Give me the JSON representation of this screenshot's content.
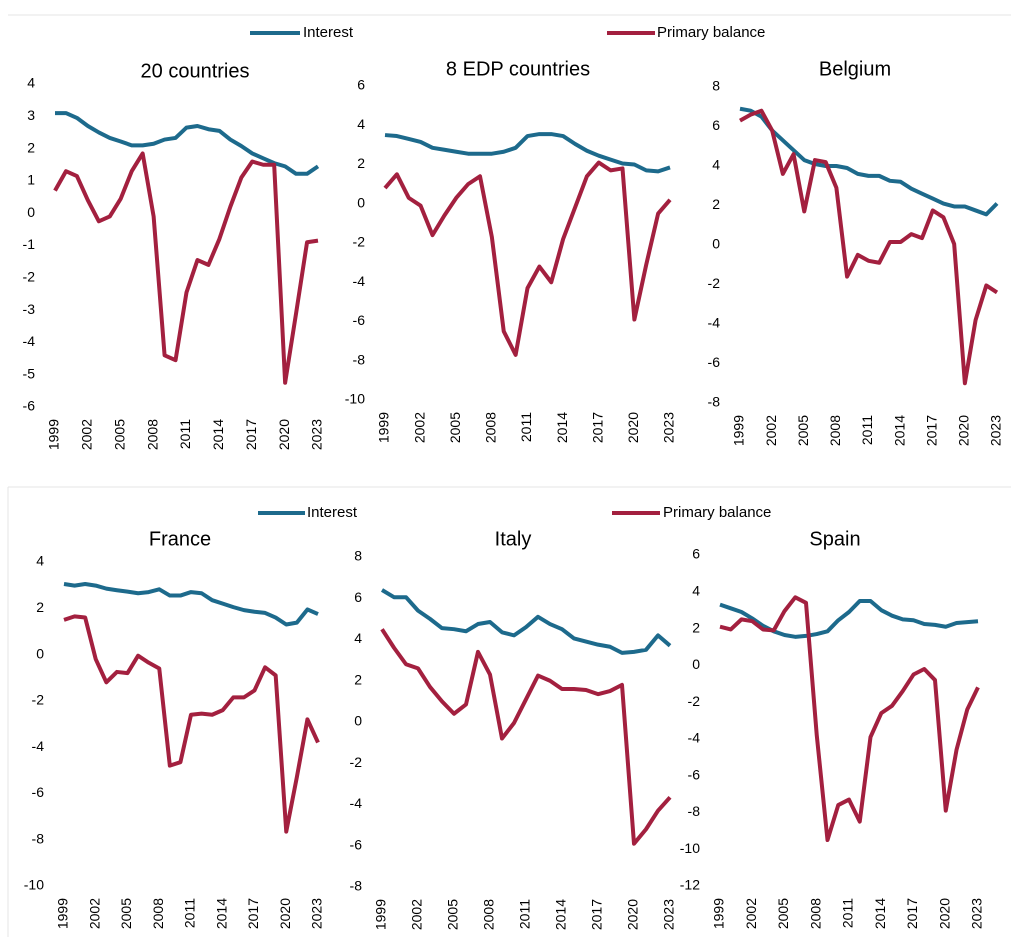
{
  "chart_data": [
    {
      "type": "line",
      "title": "20 countries",
      "x": [
        1999,
        2000,
        2001,
        2002,
        2003,
        2004,
        2005,
        2006,
        2007,
        2008,
        2009,
        2010,
        2011,
        2012,
        2013,
        2014,
        2015,
        2016,
        2017,
        2018,
        2019,
        2020,
        2021,
        2022,
        2023
      ],
      "xlim": [
        1999,
        2023
      ],
      "xticks": [
        1999,
        2002,
        2005,
        2008,
        2011,
        2014,
        2017,
        2020,
        2023
      ],
      "ylim": [
        -6,
        4
      ],
      "yticks": [
        -6,
        -5,
        -4,
        -3,
        -2,
        -1,
        0,
        1,
        2,
        3,
        4
      ],
      "series": [
        {
          "name": "Interest",
          "color": "#1d6a8c",
          "values": [
            3.1,
            3.1,
            2.95,
            2.7,
            2.5,
            2.33,
            2.22,
            2.1,
            2.1,
            2.15,
            2.28,
            2.33,
            2.65,
            2.7,
            2.6,
            2.55,
            2.28,
            2.08,
            1.85,
            1.7,
            1.55,
            1.45,
            1.22,
            1.22,
            1.45
          ]
        },
        {
          "name": "Primary balance",
          "color": "#a3203f",
          "values": [
            0.7,
            1.3,
            1.15,
            0.4,
            -0.25,
            -0.1,
            0.45,
            1.3,
            1.85,
            -0.1,
            -4.4,
            -4.55,
            -2.45,
            -1.45,
            -1.6,
            -0.8,
            0.2,
            1.1,
            1.6,
            1.5,
            1.5,
            -5.25,
            -3.1,
            -0.9,
            -0.85
          ]
        }
      ]
    },
    {
      "type": "line",
      "title": "8 EDP countries",
      "x": [
        1999,
        2000,
        2001,
        2002,
        2003,
        2004,
        2005,
        2006,
        2007,
        2008,
        2009,
        2010,
        2011,
        2012,
        2013,
        2014,
        2015,
        2016,
        2017,
        2018,
        2019,
        2020,
        2021,
        2022,
        2023
      ],
      "xlim": [
        1999,
        2023
      ],
      "xticks": [
        1999,
        2002,
        2005,
        2008,
        2011,
        2014,
        2017,
        2020,
        2023
      ],
      "ylim": [
        -10,
        6
      ],
      "yticks": [
        -10,
        -8,
        -6,
        -4,
        -2,
        0,
        2,
        4,
        6
      ],
      "series": [
        {
          "name": "Interest",
          "color": "#1d6a8c",
          "values": [
            3.5,
            3.45,
            3.3,
            3.15,
            2.85,
            2.75,
            2.65,
            2.55,
            2.55,
            2.55,
            2.65,
            2.85,
            3.45,
            3.55,
            3.55,
            3.45,
            3.05,
            2.7,
            2.45,
            2.25,
            2.05,
            2.0,
            1.7,
            1.65,
            1.85
          ]
        },
        {
          "name": "Primary balance",
          "color": "#a3203f",
          "values": [
            0.8,
            1.5,
            0.3,
            -0.1,
            -1.6,
            -0.6,
            0.3,
            1.0,
            1.4,
            -1.7,
            -6.5,
            -7.7,
            -4.3,
            -3.2,
            -4.0,
            -1.8,
            -0.2,
            1.4,
            2.1,
            1.7,
            1.8,
            -5.9,
            -3.1,
            -0.5,
            0.2
          ]
        }
      ]
    },
    {
      "type": "line",
      "title": "Belgium",
      "x": [
        1999,
        2000,
        2001,
        2002,
        2003,
        2004,
        2005,
        2006,
        2007,
        2008,
        2009,
        2010,
        2011,
        2012,
        2013,
        2014,
        2015,
        2016,
        2017,
        2018,
        2019,
        2020,
        2021,
        2022,
        2023
      ],
      "xlim": [
        1999,
        2023
      ],
      "xticks": [
        1999,
        2002,
        2005,
        2008,
        2011,
        2014,
        2017,
        2020,
        2023
      ],
      "ylim": [
        -8,
        8
      ],
      "yticks": [
        -8,
        -6,
        -4,
        -2,
        0,
        2,
        4,
        6,
        8
      ],
      "series": [
        {
          "name": "Interest",
          "color": "#1d6a8c",
          "values": [
            6.9,
            6.8,
            6.5,
            5.8,
            5.3,
            4.8,
            4.3,
            4.1,
            4.0,
            4.0,
            3.9,
            3.6,
            3.5,
            3.5,
            3.25,
            3.2,
            2.85,
            2.6,
            2.35,
            2.1,
            1.95,
            1.95,
            1.75,
            1.55,
            2.1
          ]
        },
        {
          "name": "Primary balance",
          "color": "#a3203f",
          "values": [
            6.3,
            6.6,
            6.8,
            5.8,
            3.6,
            4.6,
            1.7,
            4.3,
            4.2,
            2.9,
            -1.6,
            -0.5,
            -0.8,
            -0.9,
            0.15,
            0.15,
            0.55,
            0.35,
            1.75,
            1.4,
            0.05,
            -7.0,
            -3.8,
            -2.05,
            -2.4
          ]
        }
      ]
    },
    {
      "type": "line",
      "title": "France",
      "x": [
        1999,
        2000,
        2001,
        2002,
        2003,
        2004,
        2005,
        2006,
        2007,
        2008,
        2009,
        2010,
        2011,
        2012,
        2013,
        2014,
        2015,
        2016,
        2017,
        2018,
        2019,
        2020,
        2021,
        2022,
        2023
      ],
      "xlim": [
        1999,
        2023
      ],
      "xticks": [
        1999,
        2002,
        2005,
        2008,
        2011,
        2014,
        2017,
        2020,
        2023
      ],
      "ylim": [
        -10,
        4
      ],
      "yticks": [
        -10,
        -8,
        -6,
        -4,
        -2,
        0,
        2,
        4
      ],
      "series": [
        {
          "name": "Interest",
          "color": "#1d6a8c",
          "values": [
            3.05,
            2.98,
            3.05,
            2.98,
            2.85,
            2.78,
            2.72,
            2.65,
            2.7,
            2.82,
            2.55,
            2.55,
            2.7,
            2.65,
            2.35,
            2.2,
            2.05,
            1.92,
            1.85,
            1.8,
            1.6,
            1.3,
            1.38,
            1.95,
            1.75
          ]
        },
        {
          "name": "Primary balance",
          "color": "#a3203f",
          "values": [
            1.5,
            1.65,
            1.6,
            -0.2,
            -1.2,
            -0.75,
            -0.8,
            -0.05,
            -0.35,
            -0.6,
            -4.8,
            -4.65,
            -2.6,
            -2.55,
            -2.6,
            -2.4,
            -1.85,
            -1.85,
            -1.55,
            -0.55,
            -0.9,
            -7.65,
            -5.3,
            -2.8,
            -3.8
          ]
        }
      ]
    },
    {
      "type": "line",
      "title": "Italy",
      "x": [
        1999,
        2000,
        2001,
        2002,
        2003,
        2004,
        2005,
        2006,
        2007,
        2008,
        2009,
        2010,
        2011,
        2012,
        2013,
        2014,
        2015,
        2016,
        2017,
        2018,
        2019,
        2020,
        2021,
        2022,
        2023
      ],
      "xlim": [
        1999,
        2023
      ],
      "xticks": [
        1999,
        2002,
        2005,
        2008,
        2011,
        2014,
        2017,
        2020,
        2023
      ],
      "ylim": [
        -8,
        8
      ],
      "yticks": [
        -8,
        -6,
        -4,
        -2,
        0,
        2,
        4,
        6,
        8
      ],
      "series": [
        {
          "name": "Interest",
          "color": "#1d6a8c",
          "values": [
            6.4,
            6.05,
            6.05,
            5.4,
            5.0,
            4.55,
            4.5,
            4.4,
            4.75,
            4.85,
            4.35,
            4.2,
            4.6,
            5.1,
            4.75,
            4.5,
            4.05,
            3.9,
            3.75,
            3.65,
            3.35,
            3.4,
            3.5,
            4.2,
            3.7
          ]
        },
        {
          "name": "Primary balance",
          "color": "#a3203f",
          "values": [
            4.5,
            3.6,
            2.8,
            2.6,
            1.7,
            1.0,
            0.4,
            0.85,
            3.4,
            2.3,
            -0.8,
            -0.05,
            1.1,
            2.25,
            2.0,
            1.6,
            1.6,
            1.55,
            1.35,
            1.5,
            1.8,
            -5.9,
            -5.2,
            -4.3,
            -3.65
          ]
        }
      ]
    },
    {
      "type": "line",
      "title": "Spain",
      "x": [
        1999,
        2000,
        2001,
        2002,
        2003,
        2004,
        2005,
        2006,
        2007,
        2008,
        2009,
        2010,
        2011,
        2012,
        2013,
        2014,
        2015,
        2016,
        2017,
        2018,
        2019,
        2020,
        2021,
        2022,
        2023
      ],
      "xlim": [
        1999,
        2023
      ],
      "xticks": [
        1999,
        2002,
        2005,
        2008,
        2011,
        2014,
        2017,
        2020,
        2023
      ],
      "ylim": [
        -12,
        6
      ],
      "yticks": [
        -12,
        -10,
        -8,
        -6,
        -4,
        -2,
        0,
        2,
        4,
        6
      ],
      "series": [
        {
          "name": "Interest",
          "color": "#1d6a8c",
          "values": [
            3.3,
            3.1,
            2.9,
            2.55,
            2.15,
            1.85,
            1.65,
            1.55,
            1.6,
            1.7,
            1.85,
            2.45,
            2.9,
            3.5,
            3.5,
            3.0,
            2.7,
            2.5,
            2.45,
            2.25,
            2.2,
            2.1,
            2.3,
            2.35,
            2.4
          ]
        },
        {
          "name": "Primary balance",
          "color": "#a3203f",
          "values": [
            2.1,
            1.95,
            2.5,
            2.4,
            1.95,
            1.9,
            2.95,
            3.7,
            3.4,
            -3.8,
            -9.5,
            -7.6,
            -7.3,
            -8.5,
            -3.9,
            -2.6,
            -2.2,
            -1.4,
            -0.5,
            -0.2,
            -0.8,
            -7.9,
            -4.6,
            -2.4,
            -1.2
          ]
        }
      ]
    }
  ]
}
